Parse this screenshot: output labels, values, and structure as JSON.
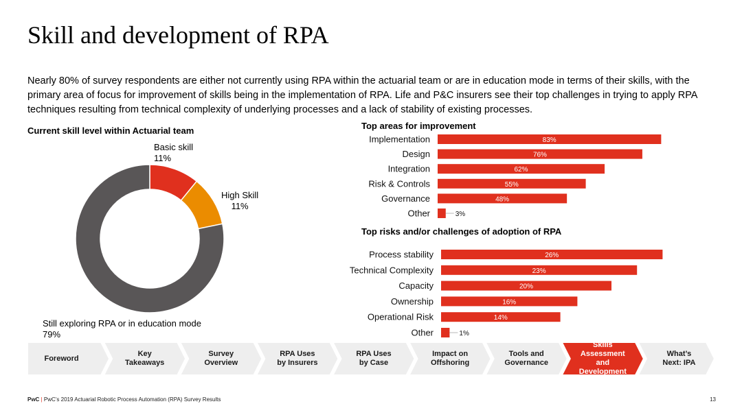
{
  "title": "Skill and development of RPA",
  "intro": "Nearly 80% of survey respondents are either not currently using RPA within the actuarial team or are in education mode in terms of their skills, with the primary area of focus for improvement of skills being in the implementation of RPA. Life and P&C insurers see their top challenges in trying to apply RPA techniques resulting from technical complexity of underlying processes and a lack of stability of existing processes.",
  "colors": {
    "accent": "#e0301e",
    "orange": "#eb8c00",
    "dark": "#595657",
    "nav": "#eeeeee"
  },
  "chart_data": [
    {
      "type": "pie",
      "title": "Current skill level within Actuarial team",
      "slices": [
        {
          "label": "Basic skill",
          "value": 11,
          "value_label": "11%",
          "color": "#e0301e"
        },
        {
          "label": "High Skill",
          "value": 11,
          "value_label": "11%",
          "color": "#eb8c00"
        },
        {
          "label": "Still exploring RPA or in education mode",
          "value": 79,
          "value_label": "79%",
          "color": "#595657"
        }
      ]
    },
    {
      "type": "bar",
      "orientation": "horizontal",
      "title": "Top areas for improvement",
      "categories": [
        "Implementation",
        "Design",
        "Integration",
        "Risk & Controls",
        "Governance",
        "Other"
      ],
      "values": [
        83,
        76,
        62,
        55,
        48,
        3
      ],
      "value_labels": [
        "83%",
        "76%",
        "62%",
        "55%",
        "48%",
        "3%"
      ],
      "xlim": [
        0,
        100
      ]
    },
    {
      "type": "bar",
      "orientation": "horizontal",
      "title": "Top risks and/or challenges of adoption of RPA",
      "categories": [
        "Process stability",
        "Technical Complexity",
        "Capacity",
        "Ownership",
        "Operational Risk",
        "Other"
      ],
      "values": [
        26,
        23,
        20,
        16,
        14,
        1
      ],
      "value_labels": [
        "26%",
        "23%",
        "20%",
        "16%",
        "14%",
        "1%"
      ],
      "xlim": [
        0,
        30
      ]
    }
  ],
  "nav": {
    "items": [
      {
        "label": "Foreword"
      },
      {
        "label": "Key\nTakeaways"
      },
      {
        "label": "Survey\nOverview"
      },
      {
        "label": "RPA Uses\nby Insurers"
      },
      {
        "label": "RPA Uses\nby Case"
      },
      {
        "label": "Impact on\nOffshoring"
      },
      {
        "label": "Tools and\nGovernance"
      },
      {
        "label": "Skills\nAssessment\nand\nDevelopment"
      },
      {
        "label": "What’s\nNext: IPA"
      }
    ],
    "active_index": 7
  },
  "footer": {
    "brand": "PwC",
    "separator": "|",
    "text": "PwC’s 2019 Actuarial Robotic Process Automation (RPA) Survey Results",
    "page": "13"
  }
}
